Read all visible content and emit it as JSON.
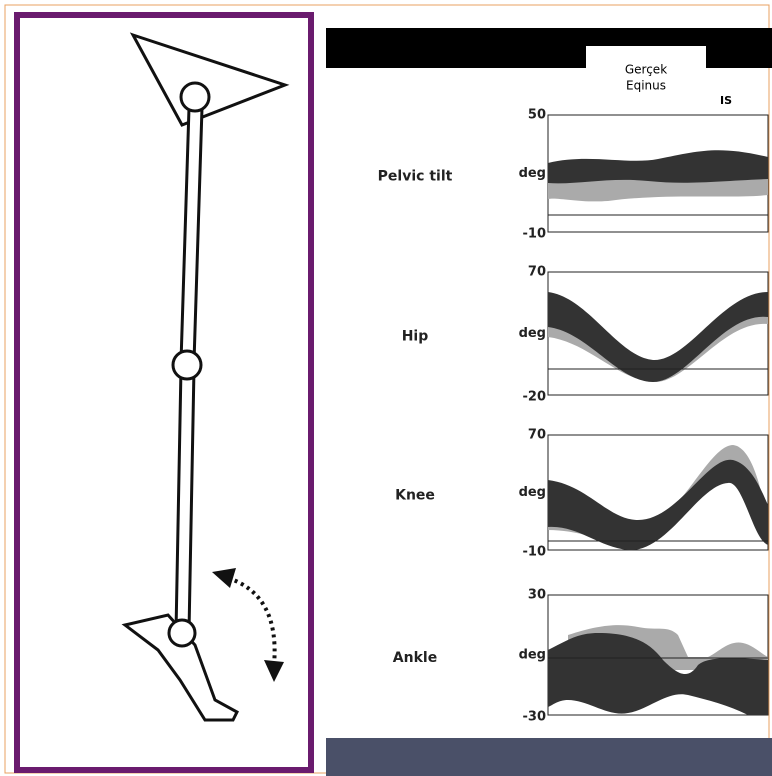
{
  "header": {
    "tab_text": [
      "Gerçek",
      "Eqinus"
    ],
    "corner_text": "IS"
  },
  "panels": [
    {
      "label": "Pelvic tilt",
      "max": 50,
      "min": -10,
      "unit": "deg"
    },
    {
      "label": "Hip",
      "max": 70,
      "min": -20,
      "unit": "deg"
    },
    {
      "label": "Knee",
      "max": 70,
      "min": -10,
      "unit": "deg"
    },
    {
      "label": "Ankle",
      "max": 30,
      "min": -30,
      "unit": "deg"
    }
  ]
}
